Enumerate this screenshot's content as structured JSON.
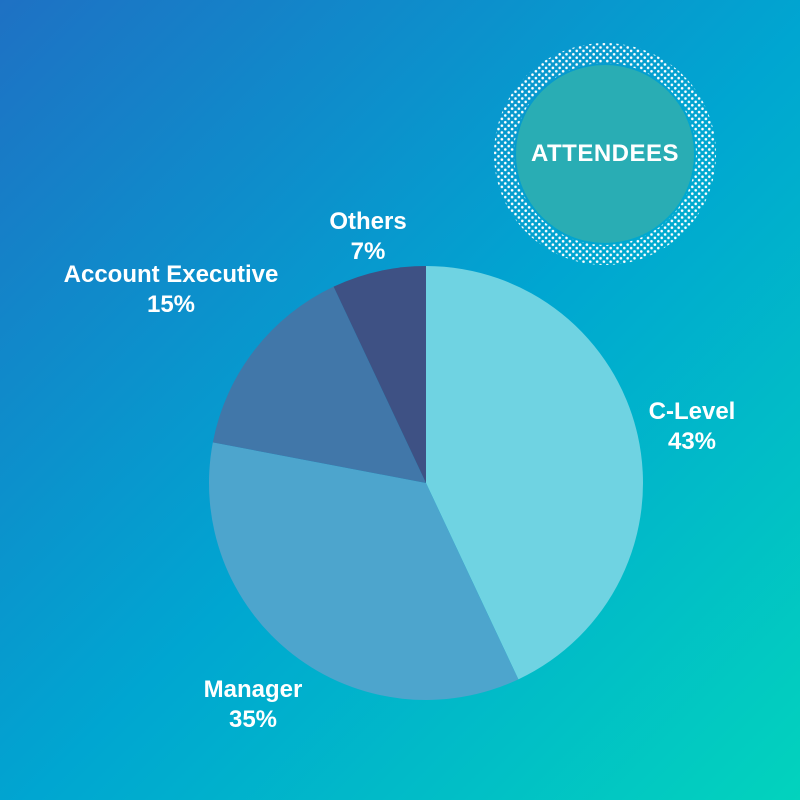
{
  "badge": {
    "title": "ATTENDEES",
    "circle_color": "#29adb4",
    "dots_color": "#ffffff"
  },
  "background": {
    "gradient_start": "#1e71c4",
    "gradient_mid": "#00a6d1",
    "gradient_end": "#02d3bd"
  },
  "chart_data": {
    "type": "pie",
    "title": "ATTENDEES",
    "direction": "clockwise",
    "start_angle_deg": 0,
    "total": 100,
    "slices": [
      {
        "label": "C-Level",
        "value": 43,
        "pct_label": "43%",
        "color": "#6fd3e2"
      },
      {
        "label": "Manager",
        "value": 35,
        "pct_label": "35%",
        "color": "#4da5cd"
      },
      {
        "label": "Account Executive",
        "value": 15,
        "pct_label": "15%",
        "color": "#4177a9"
      },
      {
        "label": "Others",
        "value": 7,
        "pct_label": "7%",
        "color": "#3e5184"
      }
    ],
    "label_color": "#ffffff",
    "legend_position": "labels-outside"
  }
}
